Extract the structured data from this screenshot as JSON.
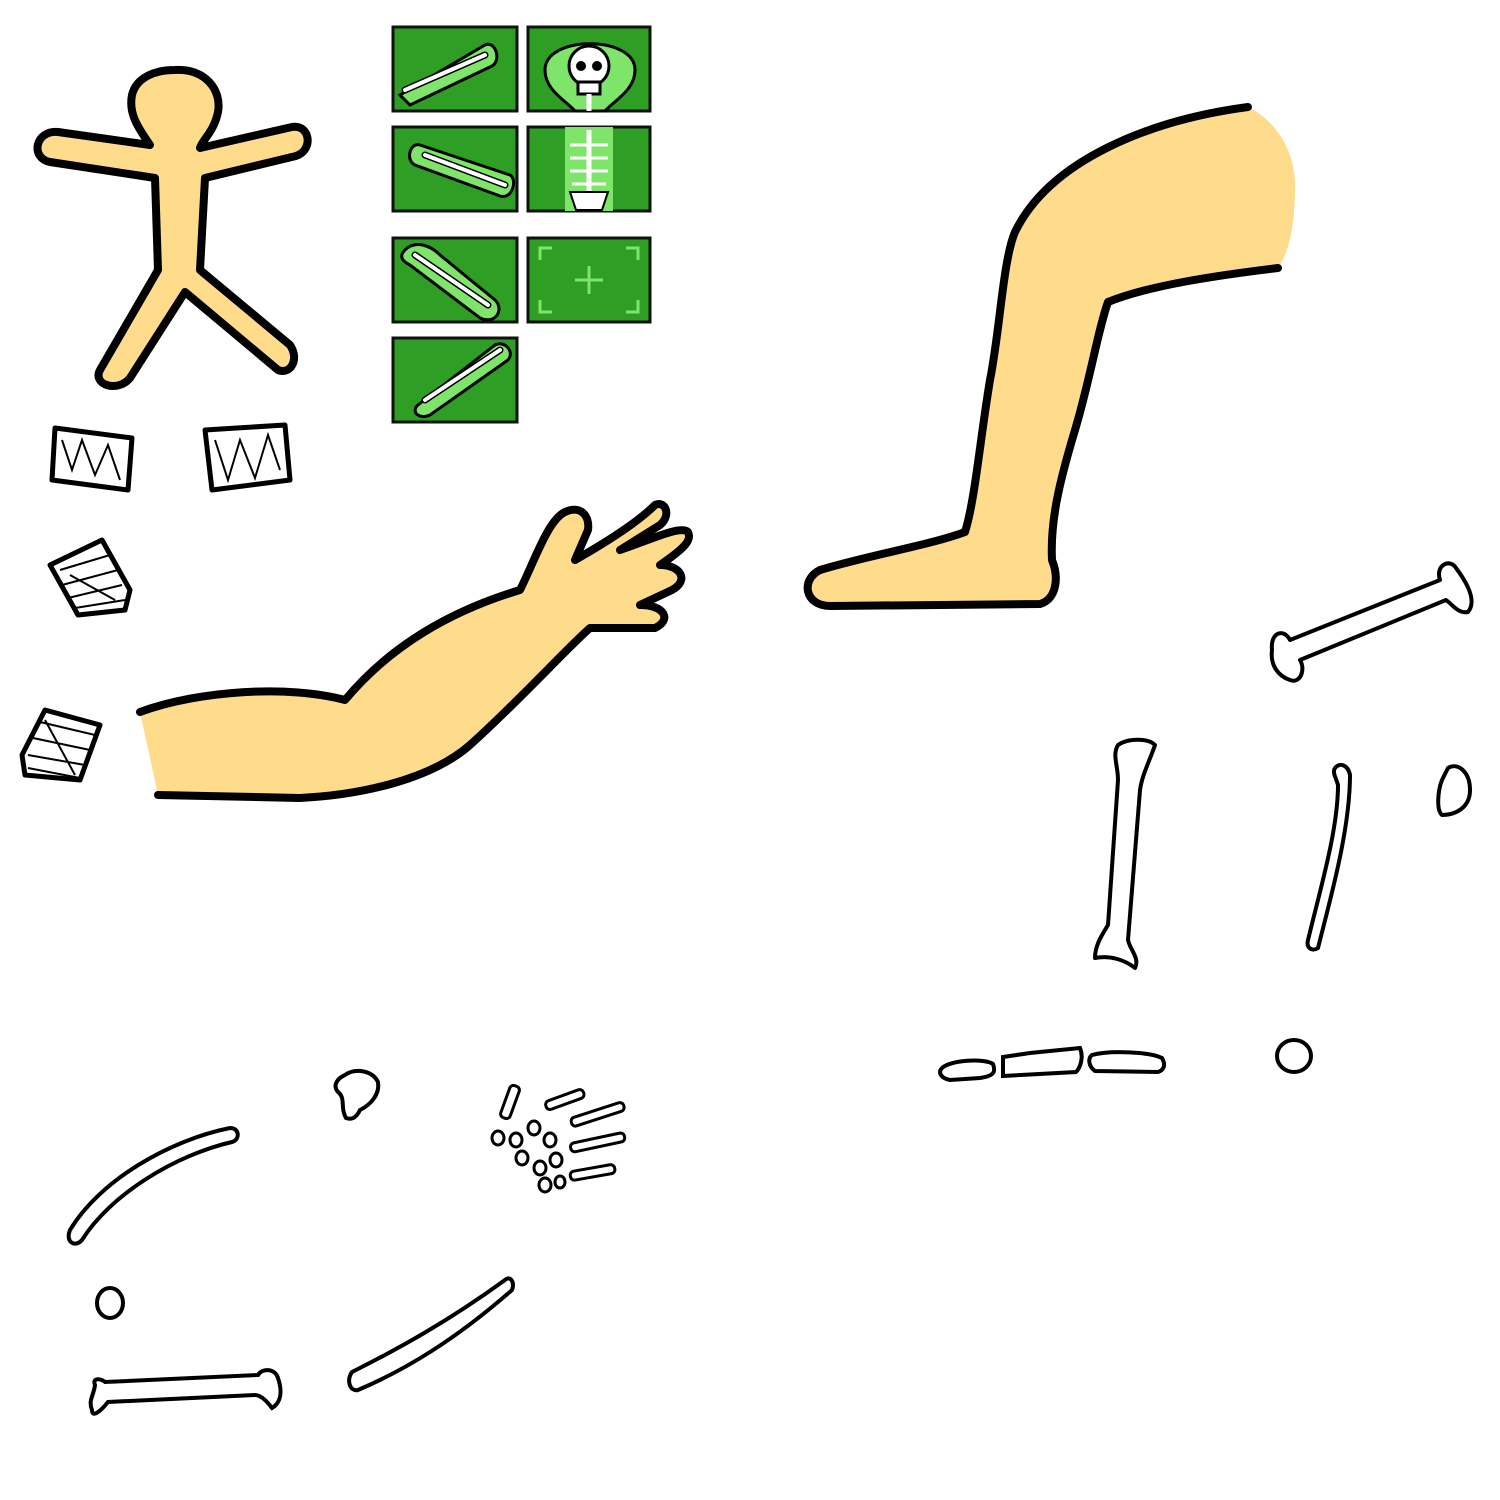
{
  "sheet": {
    "kind": "game sprite sheet",
    "background": "#ffffff"
  },
  "colors": {
    "skin": "#FFDC8C",
    "outline": "#000000",
    "xray_bg": "#2E9E24",
    "xray_glow": "#7EE46A",
    "bone_fill": "#ffffff",
    "cast_fill": "#ffffff"
  },
  "sprites": {
    "body_figure": "stick-body-icon",
    "xray_tiles": [
      {
        "name": "xray-forearm-fracture-icon"
      },
      {
        "name": "xray-skull-icon"
      },
      {
        "name": "xray-forearm-fracture-2-icon"
      },
      {
        "name": "xray-spine-pelvis-icon"
      },
      {
        "name": "xray-diagonal-bone-fracture-icon"
      },
      {
        "name": "xray-scan-target-icon"
      },
      {
        "name": "xray-diagonal-bone-fracture-2-icon"
      }
    ],
    "casts": [
      "cast-1-icon",
      "cast-2-icon",
      "cast-3-icon",
      "cast-4-icon"
    ],
    "limbs": [
      "arm-icon",
      "leg-icon"
    ],
    "leg_bones": [
      "femur-icon",
      "tibia-icon",
      "fibula-icon",
      "patella-icon",
      "metatarsal-1-icon",
      "metatarsal-2-icon",
      "metatarsal-3-icon",
      "heel-bone-icon",
      "talus-icon"
    ],
    "arm_bones": [
      "clavicle-icon",
      "scapula-icon",
      "humerus-icon",
      "radius-icon",
      "elbow-icon",
      "hand-bones-icon"
    ]
  }
}
